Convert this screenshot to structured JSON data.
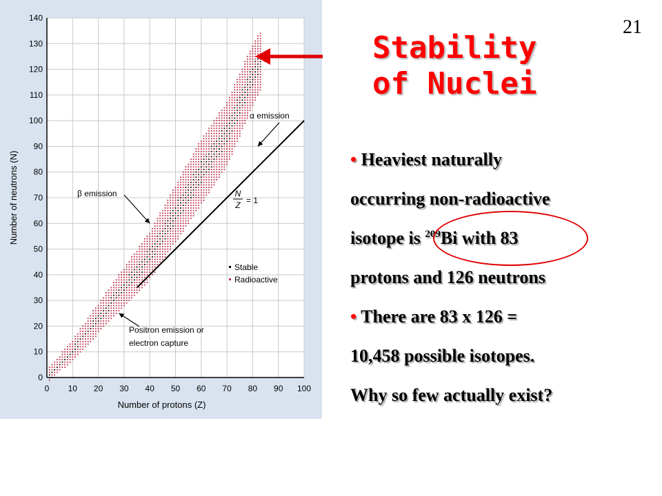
{
  "slide": {
    "number": "21",
    "title_line1": "Stability",
    "title_line2": "of Nuclei",
    "bullet_marker": "•",
    "bullet1": {
      "line1": "Heaviest naturally",
      "line2": "occurring non-radioactive",
      "line3_pre": "isotope is ",
      "mass_number": "209",
      "line3_post": "Bi with 83",
      "line4": "protons and 126 neutrons"
    },
    "bullet2": {
      "line1": "There are 83 x 126 =",
      "line2": "10,458 possible isotopes.",
      "line3": "Why so few actually exist?"
    }
  },
  "colors": {
    "title": "#ff0000",
    "stable": "#000000",
    "radioactive": "#c0304a",
    "panel": "#d9e3f0"
  },
  "chart_data": {
    "type": "scatter",
    "xlabel": "Number of protons (Z)",
    "ylabel": "Number of neutrons (N)",
    "xlim": [
      0,
      100
    ],
    "ylim": [
      0,
      140
    ],
    "x_ticks": [
      "0",
      "10",
      "20",
      "30",
      "40",
      "50",
      "60",
      "70",
      "80",
      "90",
      "100"
    ],
    "y_ticks": [
      "0",
      "10",
      "20",
      "30",
      "40",
      "50",
      "60",
      "70",
      "80",
      "90",
      "100",
      "110",
      "120",
      "130",
      "140"
    ],
    "band_center": [
      [
        0,
        0
      ],
      [
        10,
        10
      ],
      [
        20,
        22
      ],
      [
        30,
        34
      ],
      [
        40,
        46
      ],
      [
        50,
        62
      ],
      [
        60,
        78
      ],
      [
        70,
        95
      ],
      [
        80,
        120
      ],
      [
        83,
        126
      ]
    ],
    "band_lower_offset": [
      [
        0,
        -1
      ],
      [
        20,
        -4
      ],
      [
        40,
        -7
      ],
      [
        60,
        -10
      ],
      [
        83,
        -14
      ]
    ],
    "band_upper_offset": [
      [
        0,
        2
      ],
      [
        20,
        6
      ],
      [
        40,
        10
      ],
      [
        60,
        14
      ],
      [
        83,
        8
      ]
    ],
    "series": [
      {
        "name": "Stable",
        "color": "#000000"
      },
      {
        "name": "Radioactive",
        "color": "#c0304a"
      }
    ],
    "reference_line": {
      "label_num": "N",
      "label_den": "Z",
      "label_rest": "= 1",
      "from": [
        35,
        35
      ],
      "to": [
        100,
        100
      ]
    },
    "annotations": [
      {
        "text": "α emission",
        "arrow_tip": [
          82,
          90
        ]
      },
      {
        "text": "β emission",
        "arrow_tip": [
          40,
          60
        ]
      },
      {
        "text": "Positron emission or",
        "text2": "electron capture",
        "arrow_tip": [
          28,
          25
        ]
      }
    ],
    "legend_position": "right"
  }
}
